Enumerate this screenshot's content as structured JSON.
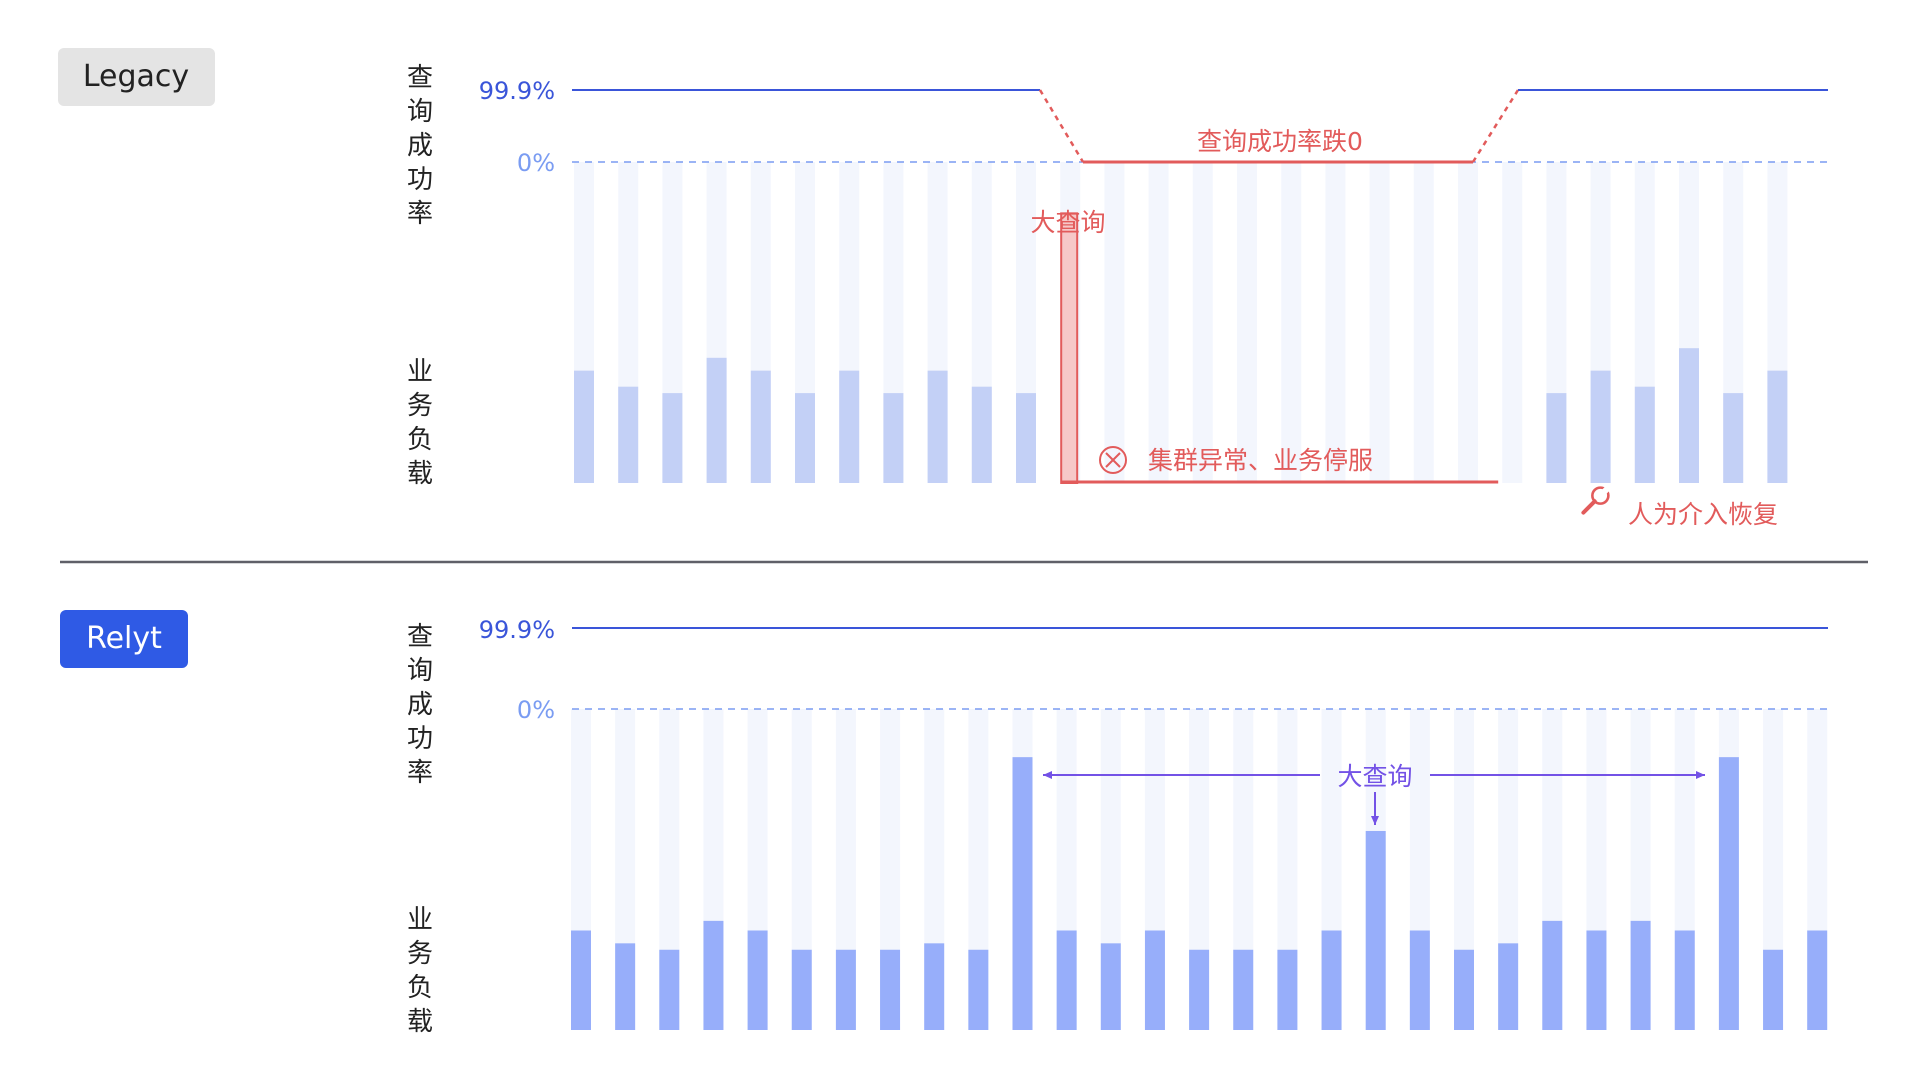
{
  "colors": {
    "line_blue": "#3a55d9",
    "pct_light": "#7a9cf2",
    "ghost_bar": "#f3f6fd",
    "legacy_bar": "#c3d0f6",
    "relyt_bar": "#97aefa",
    "alert_red": "#e25b5b",
    "alert_fill": "#f6c8c8",
    "annotation_purple": "#7352e6",
    "relyt_badge": "#2f5ae5",
    "legacy_badge": "#e4e4e4",
    "divider": "#5f6068"
  },
  "chart_data": [
    {
      "type": "bar",
      "panel": "legacy",
      "badge": "Legacy",
      "success_axis_label": "查询成功率",
      "load_axis_label": "业务负载",
      "success_ticks": [
        "99.9%",
        "0%"
      ],
      "success_segments": [
        {
          "from": 1,
          "to": 11,
          "value": 99.9
        },
        {
          "from": 12,
          "to": 21,
          "value": 0
        },
        {
          "from": 22,
          "to": 29,
          "value": 99.9
        }
      ],
      "bar_count": 28,
      "values": [
        35,
        30,
        28,
        39,
        35,
        28,
        35,
        28,
        35,
        30,
        28,
        null,
        null,
        null,
        null,
        null,
        null,
        null,
        null,
        null,
        null,
        null,
        28,
        35,
        30,
        42,
        28,
        35
      ],
      "ylim": [
        0,
        100
      ],
      "spike_bar": {
        "index": 11,
        "value": 84,
        "label": "大查询"
      },
      "annotations": {
        "drop_label": "查询成功率跌0",
        "outage_label": "集群异常、业务停服",
        "recovery_label": "人为介入恢复",
        "recovery_icon": "wrench-icon",
        "outage_icon": "close-circle-icon"
      }
    },
    {
      "type": "bar",
      "panel": "relyt",
      "badge": "Relyt",
      "success_axis_label": "查询成功率",
      "load_axis_label": "业务负载",
      "success_ticks": [
        "99.9%",
        "0%"
      ],
      "success_value": 99.9,
      "bar_count": 29,
      "values": [
        31,
        27,
        25,
        34,
        31,
        25,
        25,
        25,
        27,
        25,
        85,
        31,
        27,
        31,
        25,
        25,
        25,
        31,
        62,
        31,
        25,
        27,
        34,
        31,
        34,
        31,
        85,
        25,
        31
      ],
      "ylim": [
        0,
        100
      ],
      "annotations": {
        "big_query_label": "大查询"
      }
    }
  ]
}
